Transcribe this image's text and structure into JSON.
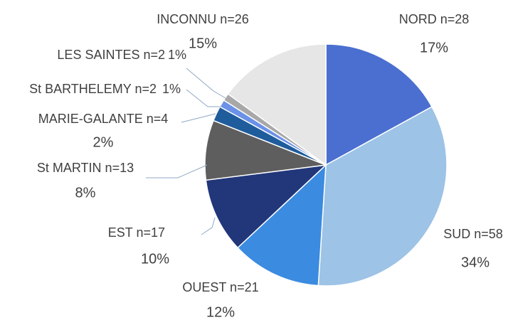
{
  "chart_data": {
    "type": "pie",
    "categories": [
      "NORD n=28",
      "SUD n=58",
      "OUEST n=21",
      "EST n=17",
      "St MARTIN n=13",
      "MARIE-GALANTE n=4",
      "St BARTHELEMY n=2",
      "LES SAINTES n=2",
      "INCONNU n=26"
    ],
    "values": [
      17,
      34,
      12,
      10,
      8,
      2,
      1,
      1,
      15
    ],
    "value_labels": [
      "17%",
      "34%",
      "12%",
      "10%",
      "8%",
      "2%",
      "1%",
      "1%",
      "15%"
    ],
    "colors": [
      "#4a6fd0",
      "#9dc3e6",
      "#3b8be0",
      "#22377a",
      "#5e5e5e",
      "#1f5c9c",
      "#6b91e8",
      "#a8a8a8",
      "#e6e6e6"
    ]
  }
}
